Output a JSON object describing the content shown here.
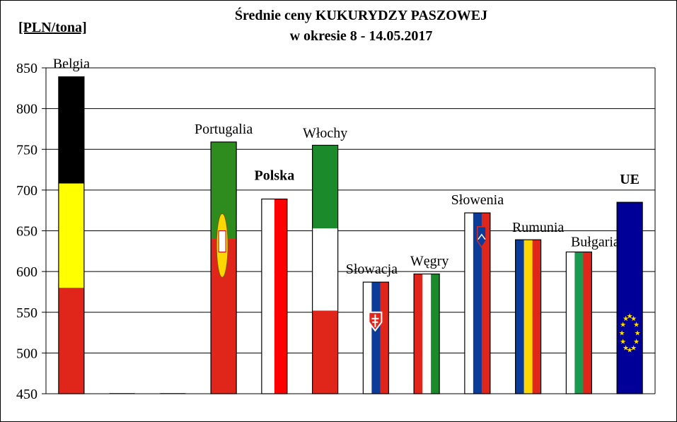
{
  "chart_data": {
    "type": "bar",
    "title": "Średnie ceny KUKURYDZY PASZOWEJ",
    "subtitle": "w okresie  8 - 14.05.2017",
    "ylabel": "[PLN/tona]",
    "ylim": [
      450,
      850
    ],
    "yticks": [
      450,
      500,
      550,
      600,
      650,
      700,
      750,
      800,
      850
    ],
    "grid": true,
    "categories": [
      "Belgia",
      "",
      "",
      "Portugalia",
      "Polska",
      "Włochy",
      "Słowacja",
      "Węgry",
      "Słowenia",
      "Rumunia",
      "Bułgaria",
      "UE"
    ],
    "values": [
      839,
      450,
      450,
      759,
      689,
      755,
      587,
      597,
      672,
      639,
      624,
      685
    ],
    "label_colors": {
      "Polska": "#000000",
      "UE": "#cc0000"
    },
    "bold_labels": [
      "Polska",
      "UE"
    ],
    "flag_colors": {
      "Belgia": [
        "#000000",
        "#ffff00",
        "#e0261a"
      ],
      "Portugalia": [
        "#2e8b1e",
        "#e0261a"
      ],
      "Polska": [
        "#ffffff",
        "#ff0000"
      ],
      "Włochy": [
        "#1a8a2a",
        "#ffffff",
        "#e0261a"
      ],
      "Słowacja": [
        "#ffffff",
        "#0b3c99",
        "#e0261a"
      ],
      "Węgry": [
        "#e0261a",
        "#ffffff",
        "#1a8a2a"
      ],
      "Słowenia": [
        "#ffffff",
        "#0b3c99",
        "#e0261a"
      ],
      "Rumunia": [
        "#0b3c99",
        "#ffd700",
        "#e0261a"
      ],
      "Bułgaria": [
        "#ffffff",
        "#1a9a50",
        "#e0261a"
      ],
      "UE": [
        "#000099",
        "#ffdd00"
      ]
    }
  }
}
